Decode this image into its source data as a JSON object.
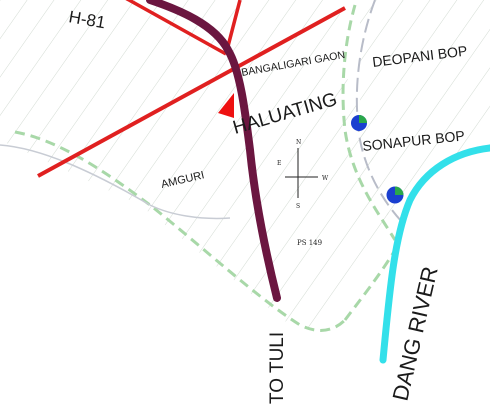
{
  "map": {
    "labels": {
      "road_number": "H-81",
      "bangaligari": "BANGALIGARI GAON",
      "deopani": "DEOPANI BOP",
      "haluating": "HALUATING",
      "sonapur": "SONAPUR BOP",
      "amguri": "AMGURI",
      "river": "DANG RIVER",
      "to_tuli": "TO TULI",
      "ps": "PS 149"
    },
    "compass": {
      "north": "N",
      "south": "S",
      "east": "E",
      "west": "W"
    },
    "colors": {
      "hatch": "#cfd8cf",
      "road_red": "#e02020",
      "road_maroon": "#6b1640",
      "river": "#33e0ea",
      "boundary_green": "#a8d8a8",
      "boundary_grey": "#b8bcc8",
      "marker_red": "#ee1111",
      "bop_blue": "#1a3fd0",
      "bop_green": "#2aa84a"
    }
  }
}
